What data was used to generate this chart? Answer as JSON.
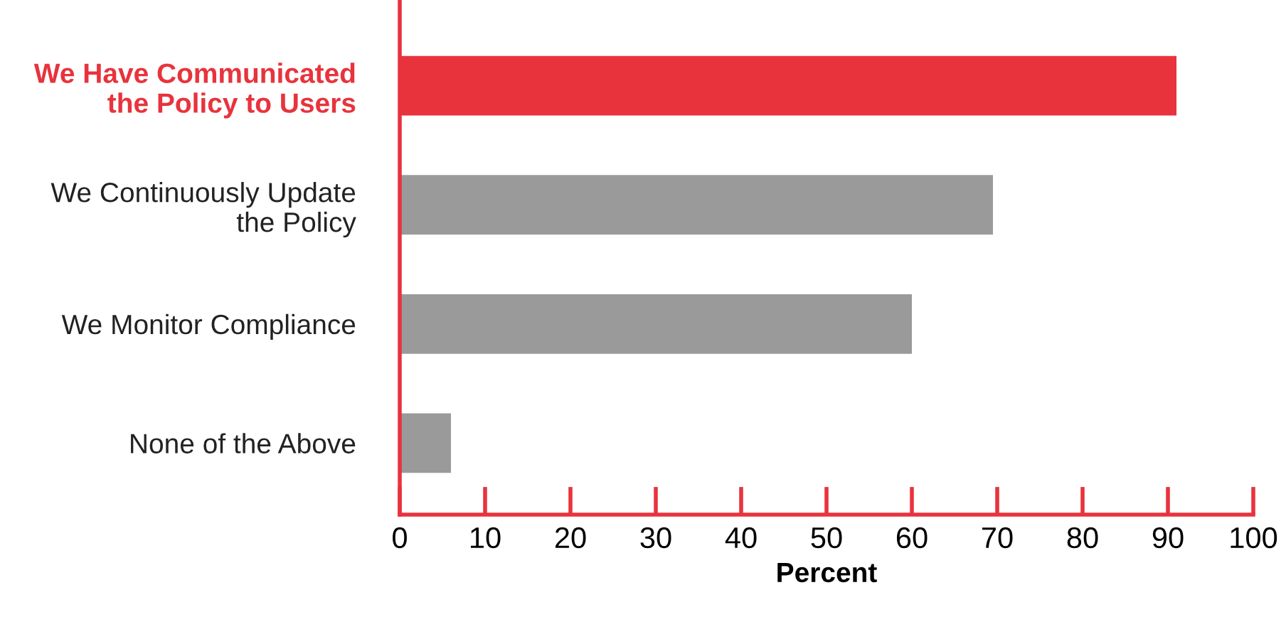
{
  "chart_data": {
    "type": "bar",
    "orientation": "horizontal",
    "xlabel": "Percent",
    "categories": [
      "We Have Communicated\nthe Policy to Users",
      "We Continuously Update\nthe Policy",
      "We Monitor Compliance",
      "None of the Above"
    ],
    "values": [
      91,
      69.5,
      60,
      6
    ],
    "colors": [
      "#e8333d",
      "#9a9a9a",
      "#9a9a9a",
      "#9a9a9a"
    ],
    "xlim": [
      0,
      100
    ],
    "xticks": [
      0,
      10,
      20,
      30,
      40,
      50,
      60,
      70,
      80,
      90,
      100
    ],
    "grid": false,
    "legend": false
  }
}
